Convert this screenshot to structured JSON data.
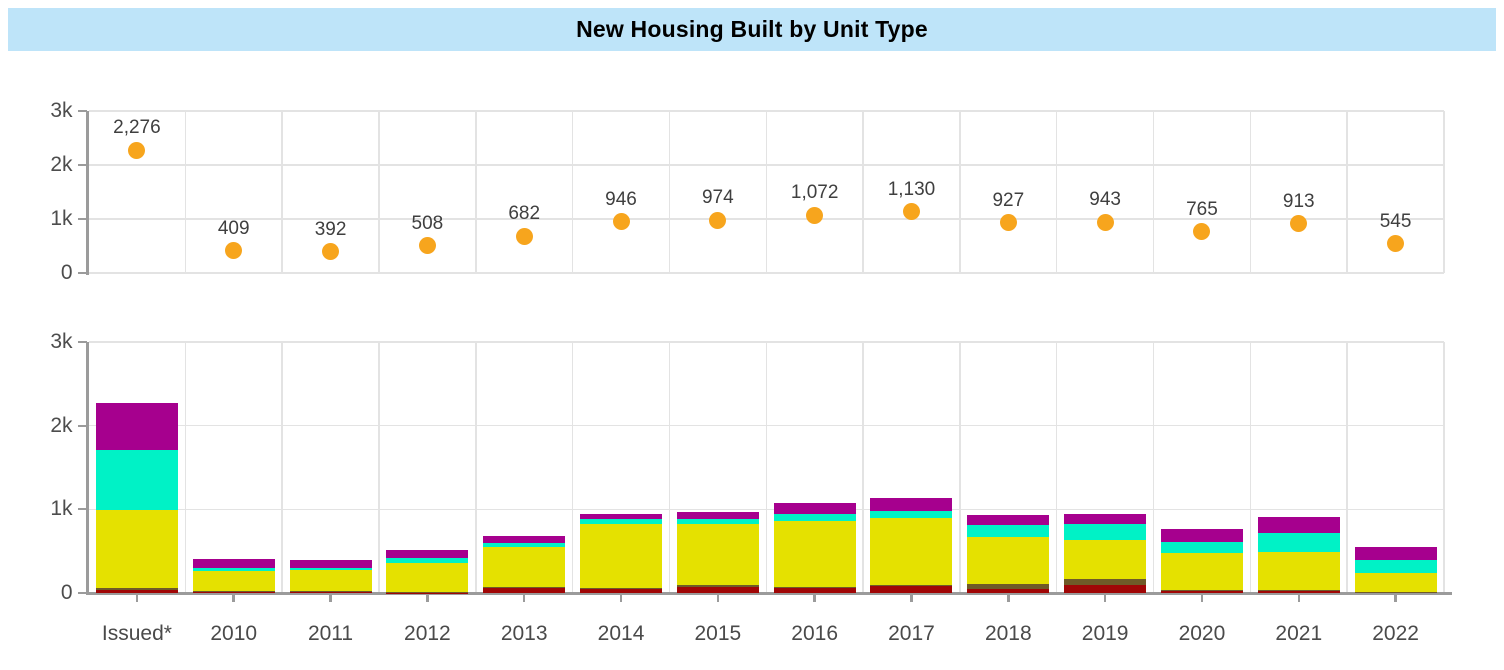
{
  "title": "New Housing Built by Unit Type",
  "style": {
    "title_bg": "#bee4f9",
    "dot_color": "#f7a51d",
    "grid_color": "#e3e3e3",
    "axis_color": "#9b9b9b",
    "point_label_color": "#3f3f3f",
    "axis_label_color": "#4d4d4d"
  },
  "chart_data": [
    {
      "panel": "top",
      "type": "scatter",
      "title": "",
      "categories": [
        "Issued*",
        "2010",
        "2011",
        "2012",
        "2013",
        "2014",
        "2015",
        "2016",
        "2017",
        "2018",
        "2019",
        "2020",
        "2021",
        "2022"
      ],
      "values": [
        2276,
        409,
        392,
        508,
        682,
        946,
        974,
        1072,
        1130,
        927,
        943,
        765,
        913,
        545
      ],
      "point_labels": [
        "2,276",
        "409",
        "392",
        "508",
        "682",
        "946",
        "974",
        "1,072",
        "1,130",
        "927",
        "943",
        "765",
        "913",
        "545"
      ],
      "marker": "circle",
      "marker_color": "#f7a51d",
      "ylim": [
        0,
        3000
      ],
      "ytick_labels": [
        "0",
        "1k",
        "2k",
        "3k"
      ],
      "grid": true,
      "legend": "none"
    },
    {
      "panel": "bottom",
      "type": "bar",
      "stacked": true,
      "categories": [
        "Issued*",
        "2010",
        "2011",
        "2012",
        "2013",
        "2014",
        "2015",
        "2016",
        "2017",
        "2018",
        "2019",
        "2020",
        "2021",
        "2022"
      ],
      "series": [
        {
          "name": "dark-red-units",
          "color": "#a00606",
          "values": [
            35,
            20,
            20,
            5,
            60,
            45,
            75,
            60,
            80,
            45,
            95,
            25,
            20,
            8
          ]
        },
        {
          "name": "olive-units",
          "color": "#6f5a28",
          "values": [
            20,
            8,
            6,
            5,
            15,
            12,
            15,
            10,
            10,
            60,
            69,
            15,
            15,
            7
          ]
        },
        {
          "name": "yellow-units",
          "color": "#e5e100",
          "values": [
            937,
            239,
            249,
            345,
            478,
            771,
            738,
            794,
            802,
            568,
            469,
            434,
            459,
            220
          ]
        },
        {
          "name": "turquoise-units",
          "color": "#00f2c6",
          "values": [
            717,
            32,
            24,
            60,
            41,
            56,
            56,
            80,
            91,
            136,
            191,
            135,
            219,
            159
          ]
        },
        {
          "name": "purple-units",
          "color": "#a6008e",
          "values": [
            567,
            110,
            93,
            93,
            88,
            62,
            90,
            128,
            147,
            118,
            119,
            156,
            200,
            151
          ]
        }
      ],
      "totals": [
        2276,
        409,
        392,
        508,
        682,
        946,
        974,
        1072,
        1130,
        927,
        943,
        765,
        913,
        545
      ],
      "ylim": [
        0,
        3000
      ],
      "ytick_labels": [
        "0",
        "1k",
        "2k",
        "3k"
      ],
      "grid": true,
      "legend": "none"
    }
  ]
}
